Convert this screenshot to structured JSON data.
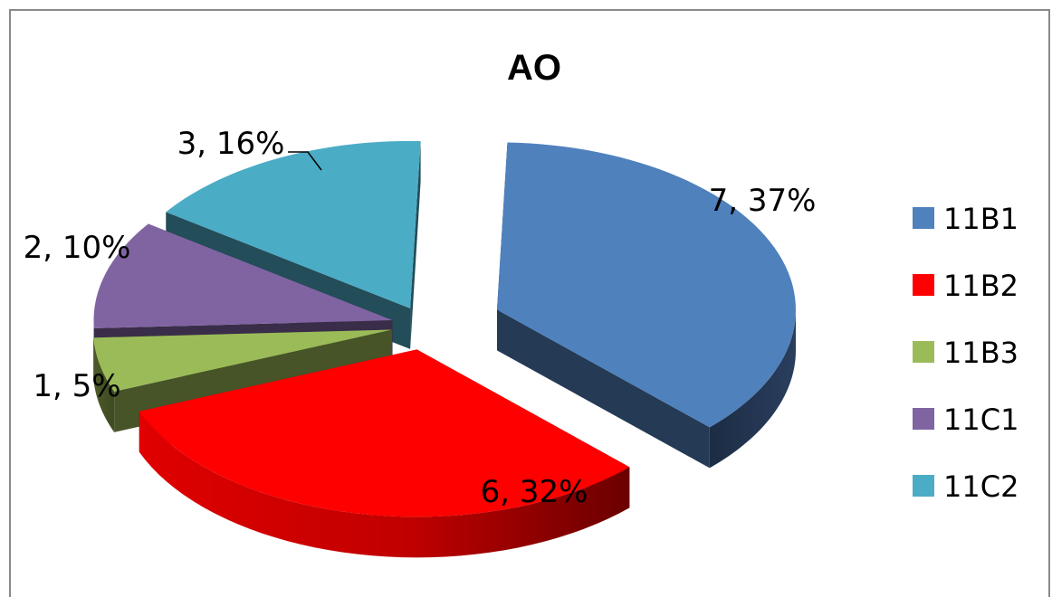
{
  "chart_data": {
    "type": "pie",
    "title": "AO",
    "categories": [
      "11B1",
      "11B2",
      "11B3",
      "11C1",
      "11C2"
    ],
    "values": [
      7,
      6,
      1,
      2,
      3
    ],
    "percentages": [
      37,
      32,
      5,
      10,
      16
    ],
    "data_labels": [
      "7, 37%",
      "6, 32%",
      "1, 5%",
      "2, 10%",
      "3, 16%"
    ],
    "colors": [
      "#4f81bd",
      "#ff0000",
      "#9bbb59",
      "#8064a2",
      "#4bacc6"
    ],
    "legend_position": "right",
    "style": "3d-exploded"
  }
}
